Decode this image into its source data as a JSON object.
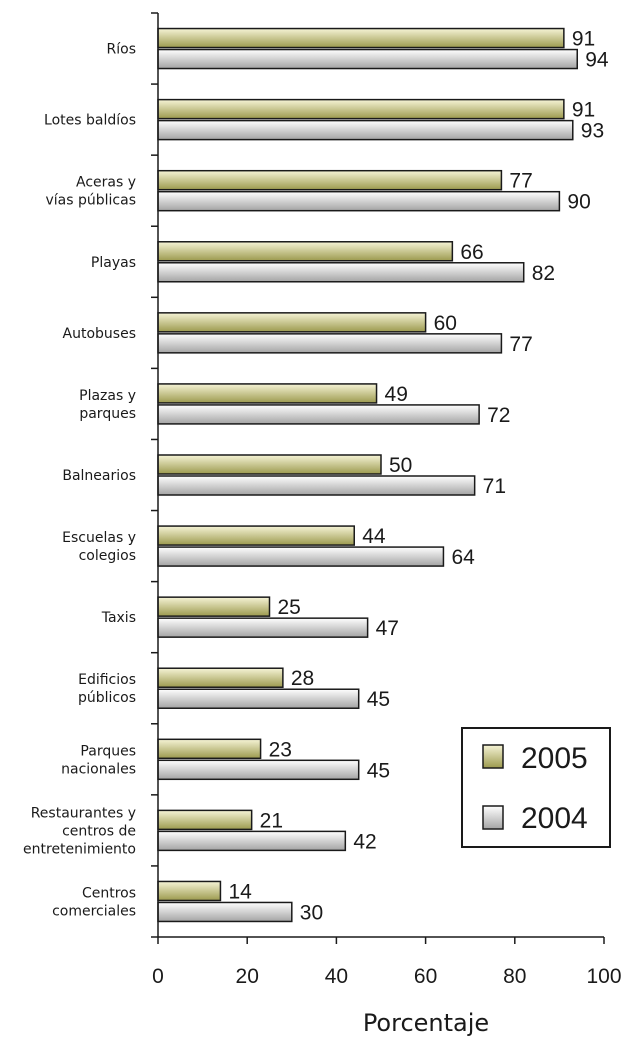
{
  "chart_data": {
    "type": "bar",
    "orientation": "horizontal",
    "categories": [
      [
        "Ríos"
      ],
      [
        "Lotes baldíos"
      ],
      [
        "Aceras y",
        "vías públicas"
      ],
      [
        "Playas"
      ],
      [
        "Autobuses"
      ],
      [
        "Plazas y",
        "parques"
      ],
      [
        "Balnearios"
      ],
      [
        "Escuelas y",
        "colegios"
      ],
      [
        "Taxis"
      ],
      [
        "Edificios",
        "públicos"
      ],
      [
        "Parques",
        "nacionales"
      ],
      [
        "Restaurantes y",
        "centros de",
        "entretenimiento"
      ],
      [
        "Centros",
        "comerciales"
      ]
    ],
    "series": [
      {
        "name": "2005",
        "values": [
          91,
          91,
          77,
          66,
          60,
          49,
          50,
          44,
          25,
          28,
          23,
          21,
          14
        ]
      },
      {
        "name": "2004",
        "values": [
          94,
          93,
          90,
          82,
          77,
          72,
          71,
          64,
          47,
          45,
          45,
          42,
          30
        ]
      }
    ],
    "xlabel": "Porcentaje",
    "ylabel": "",
    "xlim": [
      0,
      100
    ],
    "xticks": [
      "0",
      "20",
      "40",
      "60",
      "80",
      "100"
    ],
    "legend_position": "bottom-right",
    "grid": false
  },
  "colors": {
    "series_2005_light": "#f6f4d6",
    "series_2005_dark": "#9c9a4e",
    "series_2004_light": "#ffffff",
    "series_2004_dark": "#a4a4a4",
    "outline": "#1a1a1a"
  }
}
